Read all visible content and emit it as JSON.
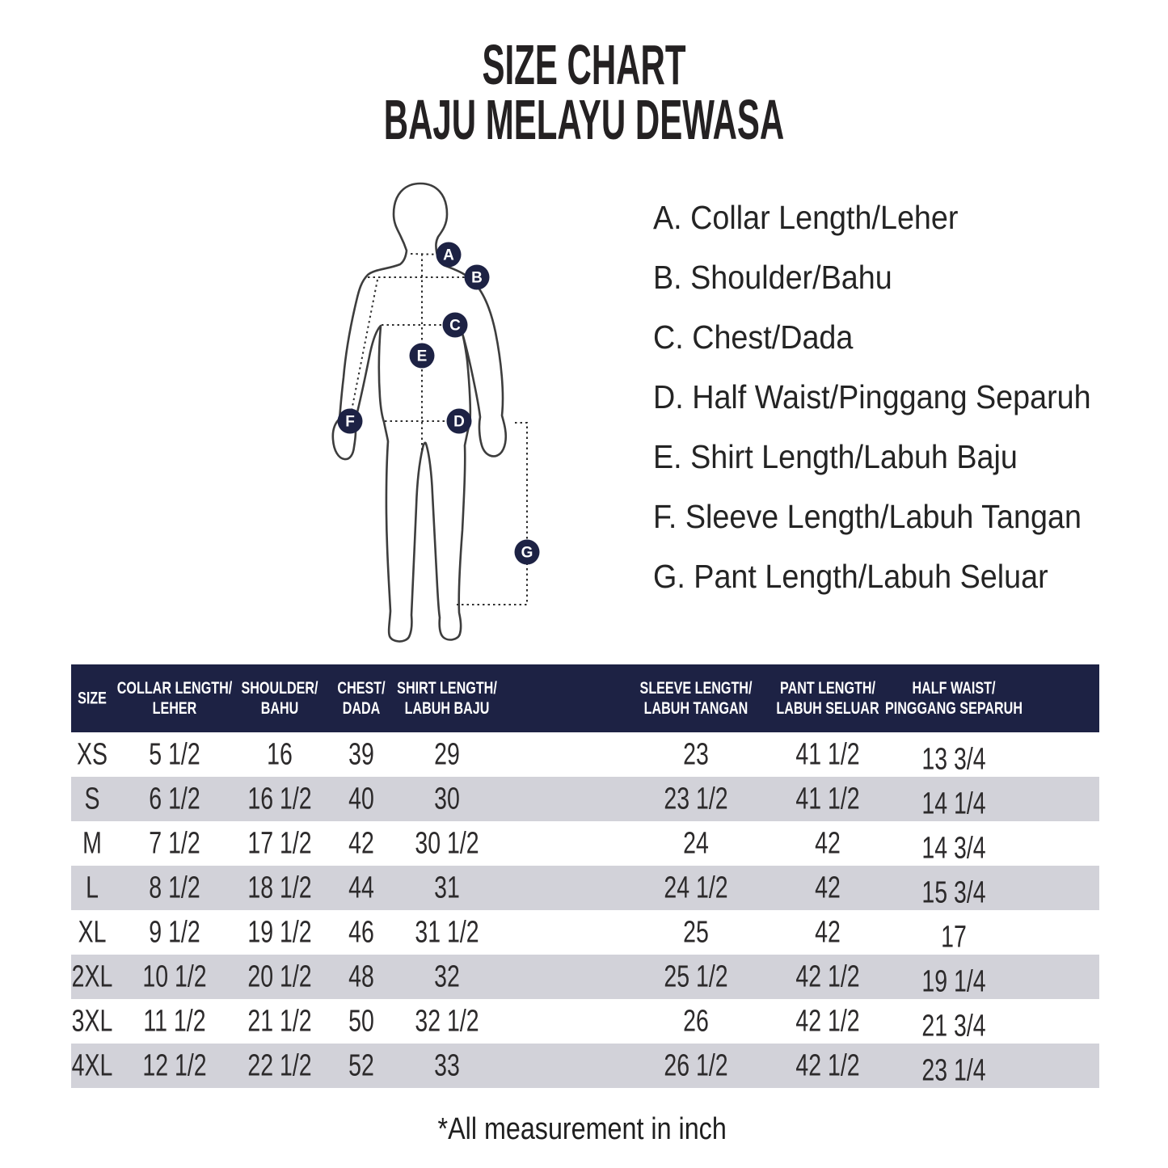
{
  "title": {
    "line1": "SIZE CHART",
    "line2": "BAJU MELAYU DEWASA"
  },
  "figure": {
    "markers": [
      "A",
      "B",
      "C",
      "D",
      "E",
      "F",
      "G"
    ]
  },
  "legend": {
    "items": [
      "A. Collar Length/Leher",
      "B. Shoulder/Bahu",
      "C. Chest/Dada",
      "D. Half Waist/Pinggang Separuh",
      "E. Shirt Length/Labuh Baju",
      "F. Sleeve Length/Labuh Tangan",
      "G. Pant Length/Labuh Seluar"
    ]
  },
  "table": {
    "columns": [
      {
        "lines": [
          "SIZE"
        ]
      },
      {
        "lines": [
          "COLLAR LENGTH/",
          "LEHER"
        ]
      },
      {
        "lines": [
          "SHOULDER/",
          "BAHU"
        ]
      },
      {
        "lines": [
          "CHEST/",
          "DADA"
        ]
      },
      {
        "lines": [
          "SHIRT LENGTH/",
          "LABUH BAJU"
        ]
      },
      {
        "lines": [
          "SLEEVE LENGTH/",
          "LABUH TANGAN"
        ]
      },
      {
        "lines": [
          "PANT LENGTH/",
          "LABUH SELUAR"
        ]
      },
      {
        "lines": [
          "HALF WAIST/",
          "PINGGANG SEPARUH"
        ]
      }
    ],
    "rows": [
      {
        "size": "XS",
        "values": [
          "5 1/2",
          "16",
          "39",
          "29",
          "23",
          "41 1/2",
          "13 3/4"
        ]
      },
      {
        "size": "S",
        "values": [
          "6 1/2",
          "16 1/2",
          "40",
          "30",
          "23 1/2",
          "41 1/2",
          "14 1/4"
        ]
      },
      {
        "size": "M",
        "values": [
          "7 1/2",
          "17 1/2",
          "42",
          "30 1/2",
          "24",
          "42",
          "14 3/4"
        ]
      },
      {
        "size": "L",
        "values": [
          "8 1/2",
          "18 1/2",
          "44",
          "31",
          "24 1/2",
          "42",
          "15 3/4"
        ]
      },
      {
        "size": "XL",
        "values": [
          "9 1/2",
          "19 1/2",
          "46",
          "31 1/2",
          "25",
          "42",
          "17"
        ]
      },
      {
        "size": "2XL",
        "values": [
          "10 1/2",
          "20 1/2",
          "48",
          "32",
          "25 1/2",
          "42 1/2",
          "19 1/4"
        ]
      },
      {
        "size": "3XL",
        "values": [
          "11 1/2",
          "21 1/2",
          "50",
          "32 1/2",
          "26",
          "42 1/2",
          "21 3/4"
        ]
      },
      {
        "size": "4XL",
        "values": [
          "12 1/2",
          "22 1/2",
          "52",
          "33",
          "26 1/2",
          "42 1/2",
          "23 1/4"
        ]
      }
    ]
  },
  "footnote": "*All measurement in inch",
  "colors": {
    "navy": "#1d2244",
    "row_stripe": "#d2d2d9",
    "text": "#242122"
  }
}
